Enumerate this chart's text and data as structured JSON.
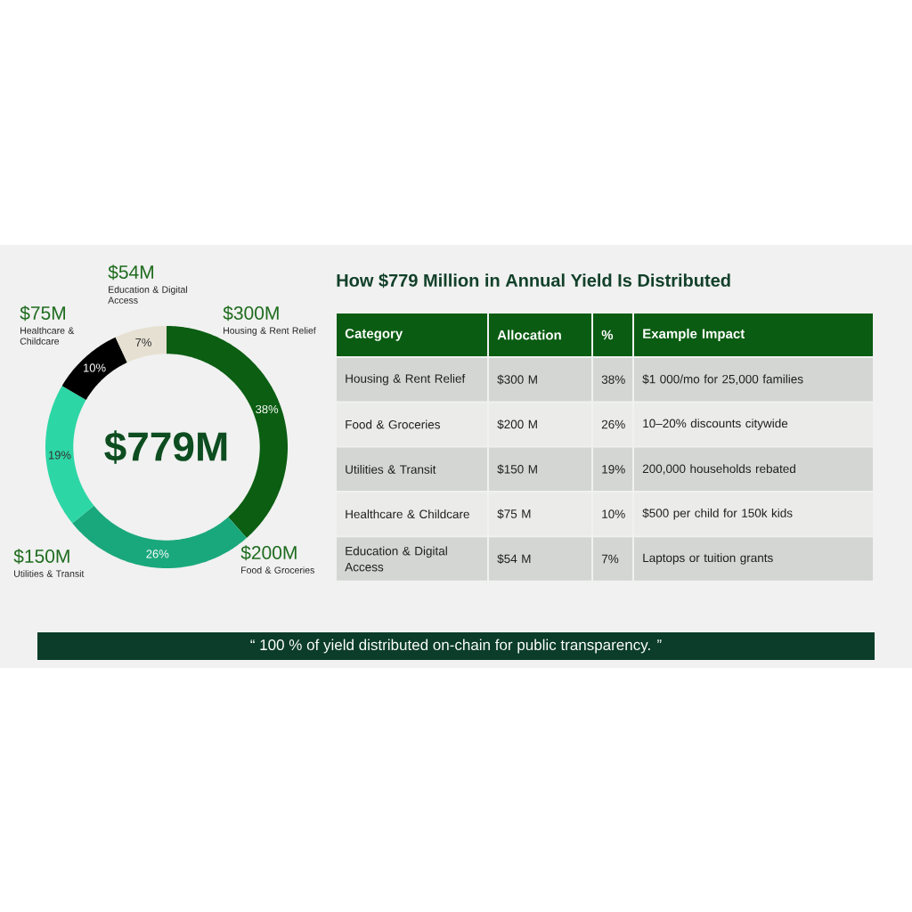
{
  "chart_data": [
    {
      "type": "donut",
      "categories": [
        "Housing & Rent Relief",
        "Food & Groceries",
        "Utilities & Transit",
        "Healthcare & Childcare",
        "Education & Digital Access"
      ],
      "values": [
        300,
        200,
        150,
        75,
        54
      ],
      "colors": [
        "#0b5e12",
        "#19a87c",
        "#2dd6a5",
        "#000000",
        "#e6e0d2"
      ],
      "value_labels": [
        "$300M",
        "$200M",
        "$150M",
        "$75M",
        "$54M"
      ],
      "annotations": [
        "$779M",
        "38%",
        "26%",
        "19%",
        "10%",
        "7%"
      ]
    },
    {
      "type": "other",
      "title": "How $779 Million in Annual Yield Is Distributed",
      "annotations": [
        "Category",
        "Allocation",
        "%",
        "Example Impact",
        "Housing & Rent Relief",
        "$300 M",
        "38%",
        "$1 000/mo for 25,000 families",
        "Food & Groceries",
        "$200 M",
        "26%",
        "10–20% discounts citywide",
        "Utilities & Transit",
        "$150 M",
        "19%",
        "200,000 households rebated",
        "Healthcare & Childcare",
        "$75 M",
        "10%",
        "$500 per child for 150k kids",
        "Education & Digital Access",
        "$54 M",
        "7%",
        "Laptops or tuition grants",
        "“  100 % of yield distributed on-chain for public transparency.  ”"
      ]
    }
  ]
}
